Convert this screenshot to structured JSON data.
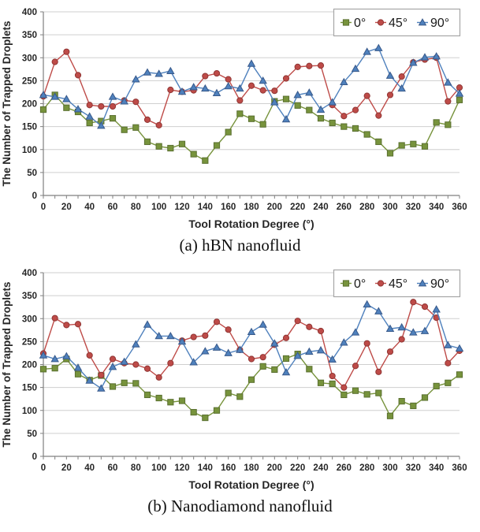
{
  "palette": {
    "background": "#ffffff",
    "grid": "#cfcfcf",
    "axis": "#808080",
    "tick_text": "#262626",
    "legend_border": "#a6a6a6",
    "series_green": "#77933C",
    "series_red": "#BE4B48",
    "series_blue": "#4F81BD"
  },
  "figures": [
    {
      "caption": "(a) hBN nanofluid"
    },
    {
      "caption": "(b) Nanodiamond nanofluid"
    }
  ],
  "chart_data": [
    {
      "type": "line",
      "title": "(a) hBN nanofluid",
      "xlabel": "Tool Rotation Degree (°)",
      "ylabel": "The Number of Trapped Droplets",
      "xlim": [
        0,
        360
      ],
      "ylim": [
        0,
        400
      ],
      "x_major_step": 20,
      "x_minor_step": 10,
      "y_tick_step": 50,
      "grid": "horizontal",
      "legend_position": "top-right",
      "x": [
        0,
        10,
        20,
        30,
        40,
        50,
        60,
        70,
        80,
        90,
        100,
        110,
        120,
        130,
        140,
        150,
        160,
        170,
        180,
        190,
        200,
        210,
        220,
        230,
        240,
        250,
        260,
        270,
        280,
        290,
        300,
        310,
        320,
        330,
        340,
        350,
        360
      ],
      "series": [
        {
          "name": "0°",
          "marker": "square",
          "color": "#77933C",
          "edge": "#5a7030",
          "values": [
            187,
            219,
            191,
            182,
            158,
            162,
            168,
            143,
            148,
            117,
            107,
            103,
            112,
            90,
            76,
            109,
            138,
            178,
            167,
            155,
            205,
            210,
            196,
            186,
            168,
            158,
            150,
            146,
            133,
            117,
            92,
            109,
            112,
            107,
            159,
            154,
            208
          ]
        },
        {
          "name": "45°",
          "marker": "circle",
          "color": "#BE4B48",
          "edge": "#903634",
          "values": [
            216,
            291,
            313,
            262,
            197,
            194,
            194,
            207,
            204,
            165,
            153,
            230,
            226,
            229,
            260,
            266,
            253,
            207,
            239,
            229,
            228,
            255,
            280,
            282,
            283,
            197,
            173,
            186,
            217,
            174,
            219,
            259,
            290,
            296,
            300,
            205,
            235
          ]
        },
        {
          "name": "90°",
          "marker": "triangle",
          "color": "#4F81BD",
          "edge": "#38598a",
          "values": [
            219,
            215,
            210,
            188,
            172,
            152,
            215,
            205,
            253,
            268,
            265,
            271,
            226,
            236,
            233,
            223,
            238,
            233,
            287,
            250,
            203,
            166,
            219,
            224,
            187,
            203,
            247,
            276,
            313,
            321,
            261,
            233,
            289,
            301,
            303,
            246,
            222
          ]
        }
      ]
    },
    {
      "type": "line",
      "title": "(b) Nanodiamond nanofluid",
      "xlabel": "Tool Rotation Degree (°)",
      "ylabel": "The Number of Trapped Droplets",
      "xlim": [
        0,
        360
      ],
      "ylim": [
        0,
        400
      ],
      "x_major_step": 20,
      "x_minor_step": 10,
      "y_tick_step": 50,
      "grid": "horizontal",
      "legend_position": "top-right",
      "x": [
        0,
        10,
        20,
        30,
        40,
        50,
        60,
        70,
        80,
        90,
        100,
        110,
        120,
        130,
        140,
        150,
        160,
        170,
        180,
        190,
        200,
        210,
        220,
        230,
        240,
        250,
        260,
        270,
        280,
        290,
        300,
        310,
        320,
        330,
        340,
        350,
        360
      ],
      "series": [
        {
          "name": "0°",
          "marker": "square",
          "color": "#77933C",
          "edge": "#5a7030",
          "values": [
            190,
            192,
            212,
            179,
            166,
            176,
            152,
            160,
            159,
            134,
            127,
            118,
            121,
            96,
            84,
            100,
            138,
            130,
            167,
            196,
            189,
            213,
            223,
            190,
            160,
            158,
            134,
            143,
            135,
            138,
            88,
            120,
            110,
            128,
            153,
            160,
            178
          ]
        },
        {
          "name": "45°",
          "marker": "circle",
          "color": "#BE4B48",
          "edge": "#903634",
          "values": [
            224,
            301,
            286,
            288,
            220,
            177,
            212,
            203,
            200,
            191,
            172,
            203,
            252,
            260,
            263,
            293,
            276,
            232,
            212,
            216,
            243,
            258,
            295,
            282,
            273,
            175,
            150,
            197,
            246,
            184,
            228,
            255,
            336,
            326,
            302,
            203,
            230
          ]
        },
        {
          "name": "90°",
          "marker": "triangle",
          "color": "#4F81BD",
          "edge": "#38598a",
          "values": [
            220,
            212,
            218,
            193,
            165,
            148,
            195,
            206,
            244,
            287,
            262,
            262,
            250,
            205,
            229,
            237,
            225,
            232,
            271,
            287,
            246,
            183,
            219,
            228,
            231,
            211,
            248,
            270,
            331,
            316,
            278,
            281,
            270,
            273,
            320,
            242,
            235
          ]
        }
      ]
    }
  ]
}
